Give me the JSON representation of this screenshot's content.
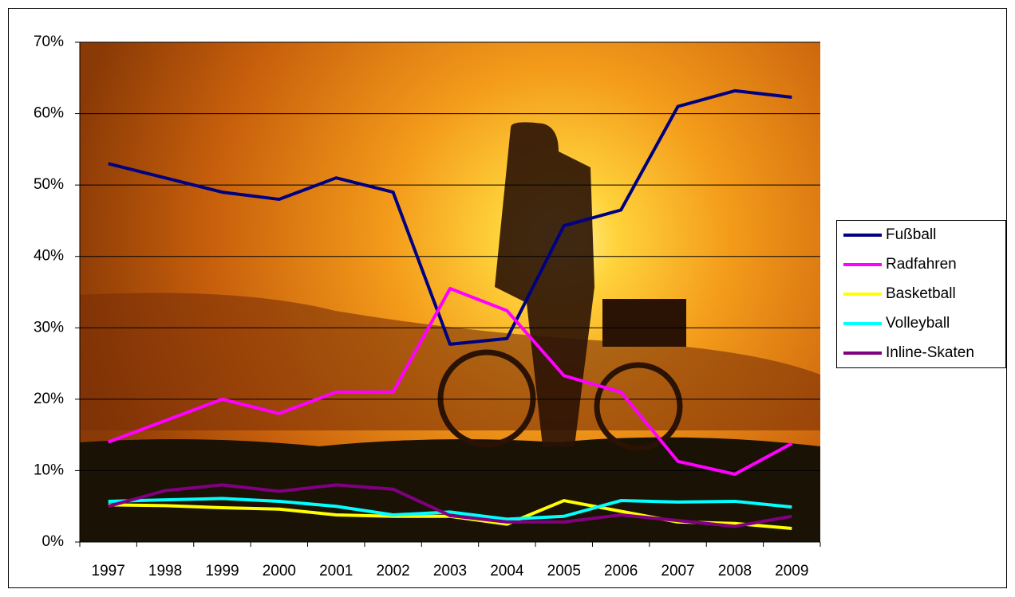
{
  "chart_data": {
    "type": "line",
    "categories": [
      "1997",
      "1998",
      "1999",
      "2000",
      "2001",
      "2002",
      "2003",
      "2004",
      "2005",
      "2006",
      "2007",
      "2008",
      "2009"
    ],
    "series": [
      {
        "name": "Fußball",
        "color": "#000080",
        "values": [
          53,
          51,
          49,
          48,
          51,
          49,
          27.7,
          28.5,
          44.3,
          46.5,
          61,
          63.2,
          62.3
        ]
      },
      {
        "name": "Radfahren",
        "color": "#ff00ff",
        "values": [
          14,
          17,
          20,
          18,
          21,
          21,
          35.5,
          32.4,
          23.3,
          21,
          11.3,
          9.5,
          13.8
        ]
      },
      {
        "name": "Basketball",
        "color": "#ffff00",
        "values": [
          5.2,
          5.1,
          4.8,
          4.6,
          3.8,
          3.6,
          3.6,
          2.5,
          5.8,
          4.3,
          2.8,
          2.6,
          1.9
        ]
      },
      {
        "name": "Volleyball",
        "color": "#00ffff",
        "values": [
          5.7,
          5.9,
          6.1,
          5.7,
          5.0,
          3.8,
          4.2,
          3.2,
          3.6,
          5.8,
          5.6,
          5.7,
          4.9
        ]
      },
      {
        "name": "Inline-Skaten",
        "color": "#800080",
        "values": [
          5.0,
          7.2,
          8.0,
          7.1,
          8.0,
          7.4,
          3.7,
          2.8,
          2.8,
          3.8,
          3.0,
          2.2,
          3.6
        ]
      }
    ],
    "ylim": [
      0,
      70
    ],
    "yticks": [
      {
        "value": 0,
        "label": "0%"
      },
      {
        "value": 10,
        "label": "10%"
      },
      {
        "value": 20,
        "label": "20%"
      },
      {
        "value": 30,
        "label": "30%"
      },
      {
        "value": 40,
        "label": "40%"
      },
      {
        "value": 50,
        "label": "50%"
      },
      {
        "value": 60,
        "label": "60%"
      },
      {
        "value": 70,
        "label": "70%"
      }
    ],
    "grid": true,
    "legend": "right"
  }
}
